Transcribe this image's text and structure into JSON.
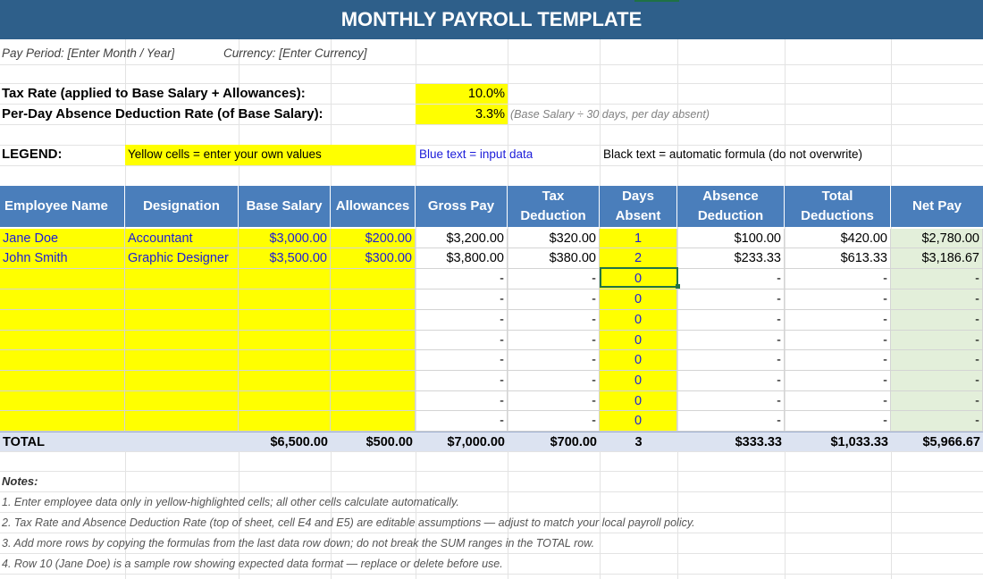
{
  "title": "MONTHLY PAYROLL TEMPLATE",
  "meta": {
    "pay_period": "Pay Period: [Enter Month / Year]",
    "currency": "Currency: [Enter Currency]"
  },
  "assumptions": {
    "tax_label": "Tax Rate (applied to Base Salary + Allowances):",
    "tax_value": "10.0%",
    "absence_label": "Per-Day Absence Deduction Rate (of Base Salary):",
    "absence_value": "3.3%",
    "absence_hint": "(Base Salary ÷ 30 days, per day absent)"
  },
  "legend": {
    "label": "LEGEND:",
    "yellow": "Yellow cells = enter your own values",
    "blue": "Blue text = input data",
    "black": "Black text = automatic formula (do not overwrite)"
  },
  "columns": [
    "Employee Name",
    "Designation",
    "Base Salary",
    "Allowances",
    "Gross Pay",
    "Tax Deduction",
    "Days Absent",
    "Absence Deduction",
    "Total Deductions",
    "Net Pay"
  ],
  "rows": [
    [
      "Jane Doe",
      "Accountant",
      "$3,000.00",
      "$200.00",
      "$3,200.00",
      "$320.00",
      "1",
      "$100.00",
      "$420.00",
      "$2,780.00"
    ],
    [
      "John Smith",
      "Graphic Designer",
      "$3,500.00",
      "$300.00",
      "$3,800.00",
      "$380.00",
      "2",
      "$233.33",
      "$613.33",
      "$3,186.67"
    ],
    [
      "",
      "",
      "",
      "",
      "-",
      "-",
      "0",
      "-",
      "-",
      "-"
    ],
    [
      "",
      "",
      "",
      "",
      "-",
      "-",
      "0",
      "-",
      "-",
      "-"
    ],
    [
      "",
      "",
      "",
      "",
      "-",
      "-",
      "0",
      "-",
      "-",
      "-"
    ],
    [
      "",
      "",
      "",
      "",
      "-",
      "-",
      "0",
      "-",
      "-",
      "-"
    ],
    [
      "",
      "",
      "",
      "",
      "-",
      "-",
      "0",
      "-",
      "-",
      "-"
    ],
    [
      "",
      "",
      "",
      "",
      "-",
      "-",
      "0",
      "-",
      "-",
      "-"
    ],
    [
      "",
      "",
      "",
      "",
      "-",
      "-",
      "0",
      "-",
      "-",
      "-"
    ],
    [
      "",
      "",
      "",
      "",
      "-",
      "-",
      "0",
      "-",
      "-",
      "-"
    ]
  ],
  "totals": [
    "TOTAL",
    "",
    "$6,500.00",
    "$500.00",
    "$7,000.00",
    "$700.00",
    "3",
    "$333.33",
    "$1,033.33",
    "$5,966.67"
  ],
  "notes": {
    "heading": "Notes:",
    "items": [
      "1. Enter employee data only in yellow-highlighted cells; all other cells calculate automatically.",
      "2. Tax Rate and Absence Deduction Rate (top of sheet, cell E4 and E5) are editable assumptions — adjust to match your local payroll policy.",
      "3. Add more rows by copying the formulas from the last data row down; do not break the SUM ranges in the TOTAL row.",
      "4. Row 10 (Jane Doe) is a sample row showing expected data format — replace or delete before use."
    ]
  },
  "colors": {
    "banner": "#2e5f8a",
    "header": "#4a7ebb",
    "input_fill": "#ffff00",
    "input_text": "#1c1cd9",
    "total_fill": "#dce3f1",
    "net_fill": "#e3efda"
  }
}
